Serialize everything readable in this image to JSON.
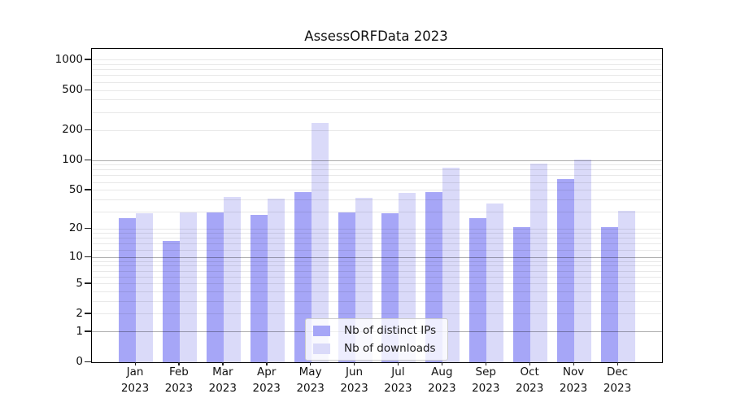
{
  "figure": {
    "background": "#ffffff",
    "axis_color": "#000000"
  },
  "chart_data": {
    "type": "bar",
    "title": "AssessORFData 2023",
    "categories": [
      "Jan",
      "Feb",
      "Mar",
      "Apr",
      "May",
      "Jun",
      "Jul",
      "Aug",
      "Sep",
      "Oct",
      "Nov",
      "Dec"
    ],
    "category_year": "2023",
    "series": [
      {
        "name": "Nb of distinct IPs",
        "color": "#a6a6f7",
        "values": [
          26,
          15,
          30,
          28,
          48,
          30,
          29,
          48,
          26,
          21,
          65,
          21
        ]
      },
      {
        "name": "Nb of downloads",
        "color": "#dadaf9",
        "values": [
          29,
          30,
          43,
          41,
          237,
          42,
          47,
          85,
          37,
          93,
          103,
          31
        ]
      }
    ],
    "yscale": "log10(1+v)",
    "ylim": [
      0,
      1294
    ],
    "yticks": [
      0,
      1,
      2,
      5,
      10,
      20,
      50,
      100,
      200,
      500,
      1000
    ],
    "ytick_major": [
      1,
      10,
      100
    ],
    "grid_minor_values": [
      2,
      3,
      4,
      5,
      6,
      7,
      8,
      9,
      12,
      14,
      16,
      18,
      20,
      30,
      40,
      50,
      60,
      70,
      80,
      90,
      200,
      300,
      400,
      500,
      600,
      700,
      800,
      900,
      1000
    ],
    "grid": true,
    "grid_major_color": "rgba(0,0,0,0.32)",
    "grid_minor_color": "rgba(0,0,0,0.09)",
    "legend_position": "lower center"
  }
}
